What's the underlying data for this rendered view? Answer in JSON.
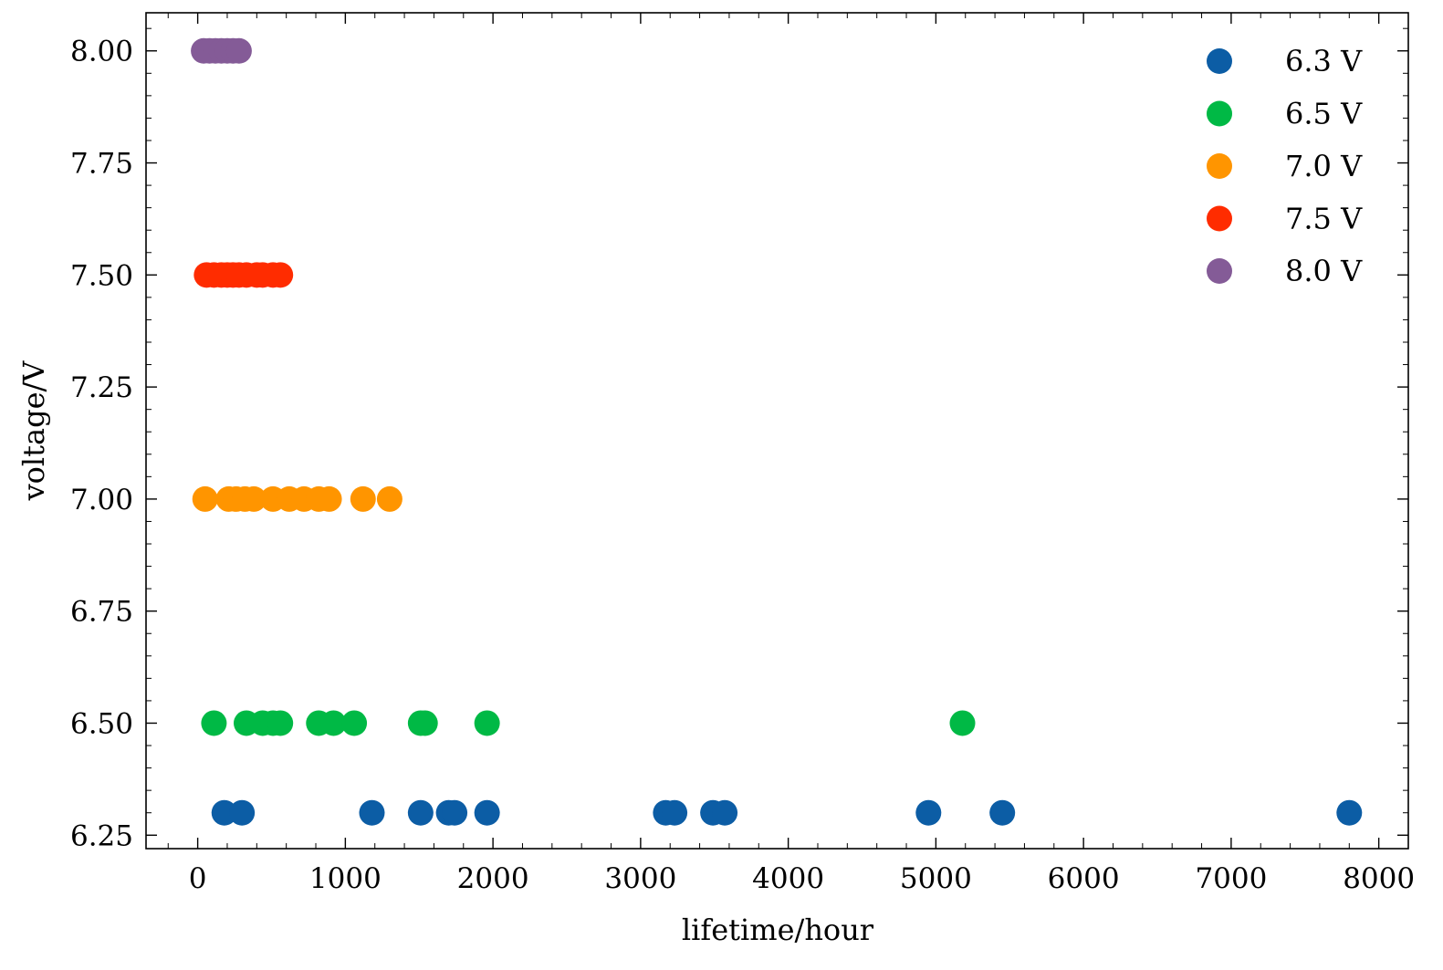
{
  "chart_data": {
    "type": "scatter",
    "title": "",
    "xlabel": "lifetime/hour",
    "ylabel": "voltage/V",
    "xlim": [
      -350,
      8200
    ],
    "ylim": [
      6.22,
      8.085
    ],
    "xticks": [
      0,
      1000,
      2000,
      3000,
      4000,
      5000,
      6000,
      7000,
      8000
    ],
    "xtick_labels": [
      "0",
      "1000",
      "2000",
      "3000",
      "4000",
      "5000",
      "6000",
      "7000",
      "8000"
    ],
    "yticks": [
      6.25,
      6.5,
      6.75,
      7.0,
      7.25,
      7.5,
      7.75,
      8.0
    ],
    "ytick_labels": [
      "6.25",
      "6.50",
      "6.75",
      "7.00",
      "7.25",
      "7.50",
      "7.75",
      "8.00"
    ],
    "grid": false,
    "legend_position": "top-right",
    "series": [
      {
        "name": "6.3 V",
        "color": "#0C5DA5",
        "y": 6.3,
        "x": [
          180,
          300,
          1180,
          1510,
          1700,
          1740,
          1960,
          3170,
          3230,
          3490,
          3570,
          4950,
          5450,
          7800
        ]
      },
      {
        "name": "6.5 V",
        "color": "#00B945",
        "y": 6.5,
        "x": [
          110,
          330,
          440,
          510,
          560,
          820,
          920,
          1060,
          1510,
          1540,
          1960,
          5180
        ]
      },
      {
        "name": "7.0 V",
        "color": "#FF9500",
        "y": 7.0,
        "x": [
          50,
          210,
          260,
          320,
          380,
          510,
          620,
          720,
          820,
          890,
          1120,
          1300
        ]
      },
      {
        "name": "7.5 V",
        "color": "#FF2C00",
        "y": 7.5,
        "x": [
          60,
          110,
          160,
          200,
          240,
          280,
          330,
          400,
          440,
          510,
          560
        ]
      },
      {
        "name": "8.0 V",
        "color": "#845B97",
        "y": 8.0,
        "x": [
          40,
          80,
          120,
          160,
          200,
          240,
          280
        ]
      }
    ]
  }
}
